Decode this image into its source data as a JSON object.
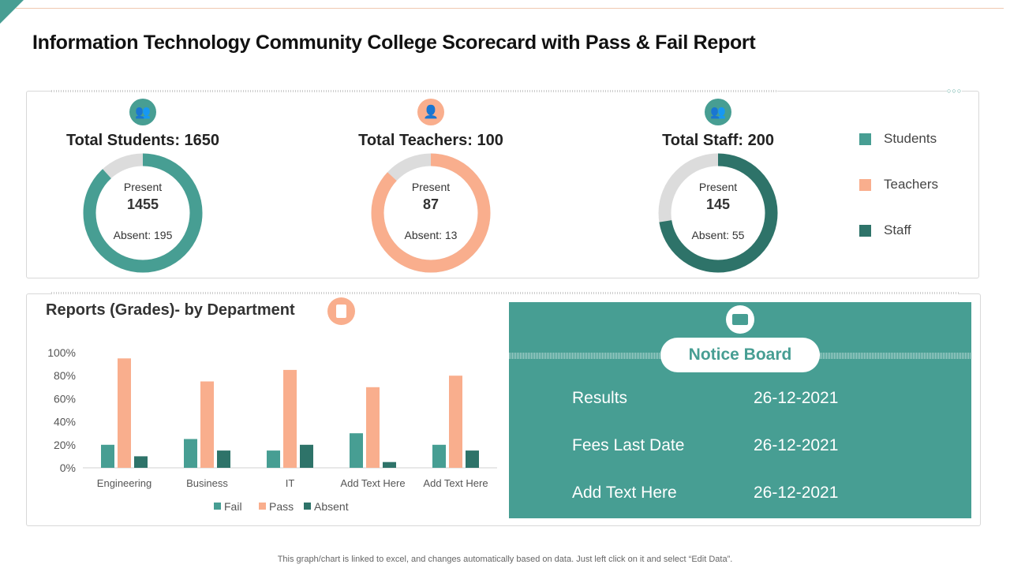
{
  "title": "Information Technology Community College Scorecard with Pass & Fail Report",
  "kpis": [
    {
      "label": "Total Students: 1650",
      "present_label": "Present",
      "present": "1455",
      "absent": "Absent: 195",
      "present_value": 1455,
      "total": 1650,
      "color": "#479e93",
      "icon": "students-icon"
    },
    {
      "label": "Total Teachers: 100",
      "present_label": "Present",
      "present": "87",
      "absent": "Absent: 13",
      "present_value": 87,
      "total": 100,
      "color": "#f9ae8d",
      "icon": "teacher-icon"
    },
    {
      "label": "Total Staff: 200",
      "present_label": "Present",
      "present": "145",
      "absent": "Absent: 55",
      "present_value": 145,
      "total": 200,
      "color": "#2e7369",
      "icon": "staff-icon"
    }
  ],
  "legend": [
    {
      "label": "Students",
      "color": "#479e93"
    },
    {
      "label": "Teachers",
      "color": "#f9ae8d"
    },
    {
      "label": "Staff",
      "color": "#2e7369"
    }
  ],
  "reports": {
    "title": "Reports (Grades)- by Department",
    "icon": "report-icon"
  },
  "chart_data": {
    "type": "bar",
    "categories": [
      "Engineering",
      "Business",
      "IT",
      "Add Text Here",
      "Add Text Here"
    ],
    "series": [
      {
        "name": "Fail",
        "values": [
          20,
          25,
          15,
          30,
          20
        ],
        "color": "#479e93"
      },
      {
        "name": "Pass",
        "values": [
          95,
          75,
          85,
          70,
          80
        ],
        "color": "#f9ae8d"
      },
      {
        "name": "Absent",
        "values": [
          10,
          15,
          20,
          5,
          15
        ],
        "color": "#2e7369"
      }
    ],
    "yticks": [
      "0%",
      "20%",
      "40%",
      "60%",
      "80%",
      "100%"
    ],
    "ylim": [
      0,
      100
    ],
    "legend": "bottom",
    "grid": false
  },
  "notice": {
    "title": "Notice Board",
    "icon": "notice-board-icon",
    "rows": [
      {
        "label": "Results",
        "date": "26-12-2021"
      },
      {
        "label": "Fees Last Date",
        "date": "26-12-2021"
      },
      {
        "label": "Add Text Here",
        "date": "26-12-2021"
      }
    ]
  },
  "footer": "This graph/chart is linked to excel, and changes automatically based on data. Just left click on it and select “Edit Data”."
}
